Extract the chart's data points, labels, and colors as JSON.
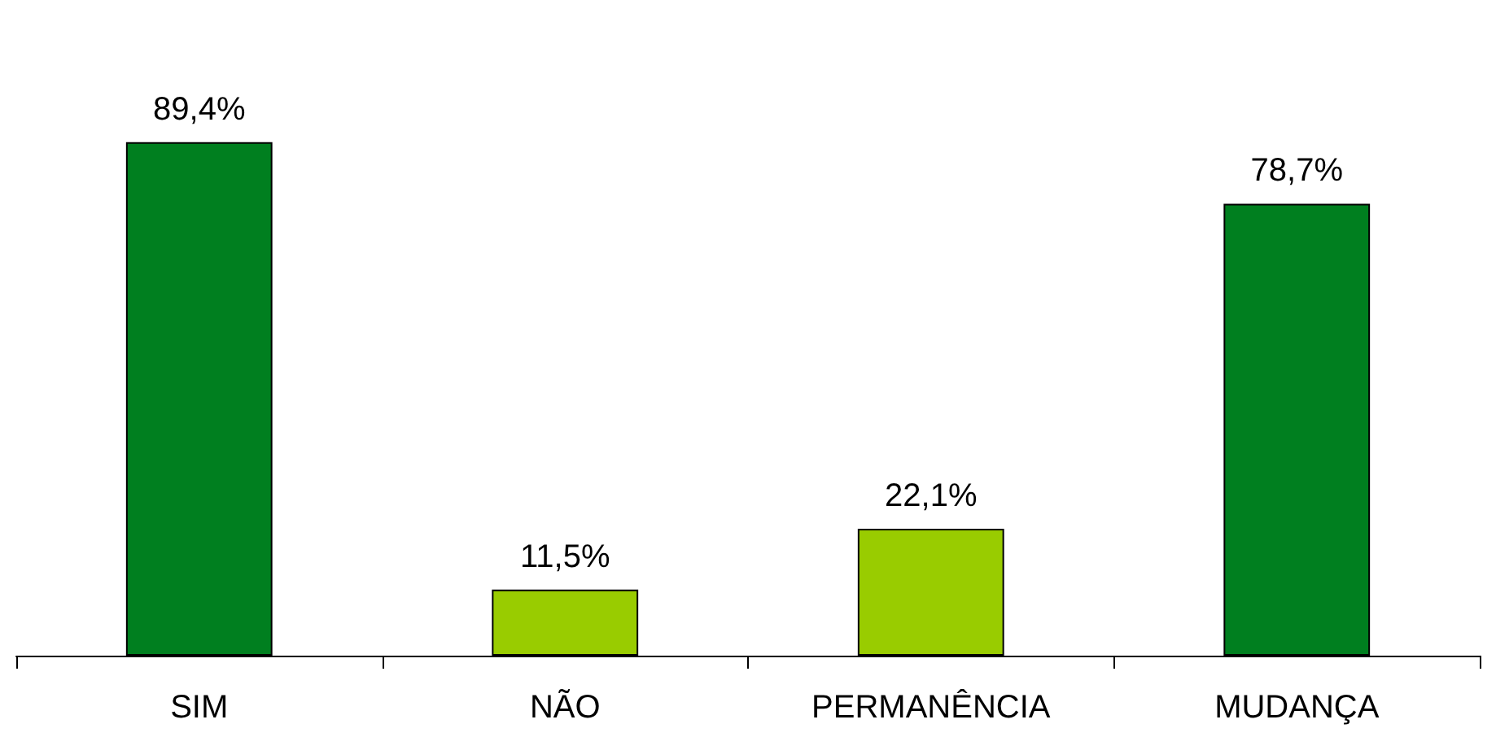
{
  "chart_data": {
    "type": "bar",
    "categories": [
      "SIM",
      "NÃO",
      "PERMANÊNCIA",
      "MUDANÇA"
    ],
    "values": [
      89.4,
      11.5,
      22.1,
      78.7
    ],
    "colors": [
      "#007f1f",
      "#99cc00",
      "#99cc00",
      "#007f1f"
    ],
    "value_labels": [
      "89,4%",
      "11,5%",
      "22,1%",
      "78,7%"
    ]
  }
}
